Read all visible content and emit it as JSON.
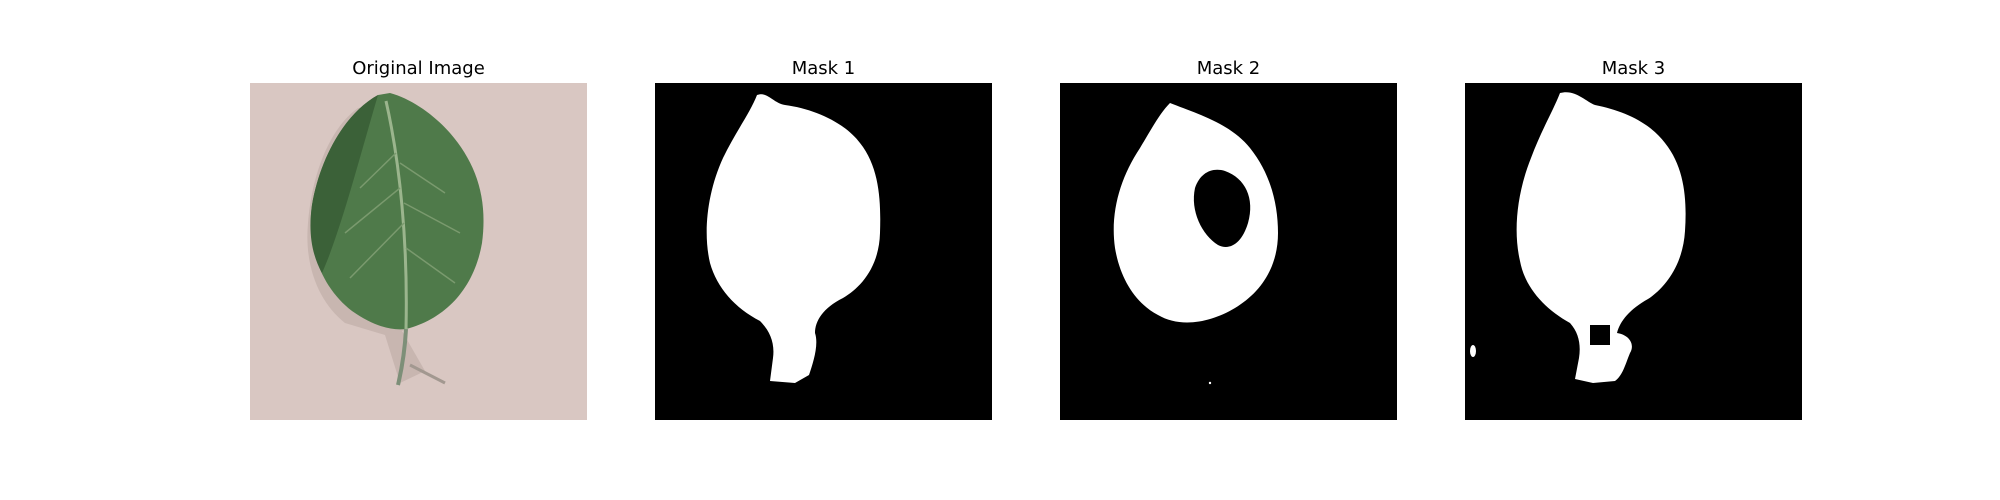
{
  "panels": [
    {
      "title": "Original Image",
      "kind": "photo",
      "subject": "green-leaf-on-beige-surface"
    },
    {
      "title": "Mask 1",
      "kind": "mask"
    },
    {
      "title": "Mask 2",
      "kind": "mask"
    },
    {
      "title": "Mask 3",
      "kind": "mask"
    }
  ],
  "colors": {
    "background": "#ffffff",
    "mask_background": "#000000",
    "mask_foreground": "#ffffff",
    "photo_background": "#d9c7c2",
    "leaf_green": "#4f7a4a",
    "leaf_dark": "#2f4f2f",
    "vein": "#9bb58d"
  }
}
